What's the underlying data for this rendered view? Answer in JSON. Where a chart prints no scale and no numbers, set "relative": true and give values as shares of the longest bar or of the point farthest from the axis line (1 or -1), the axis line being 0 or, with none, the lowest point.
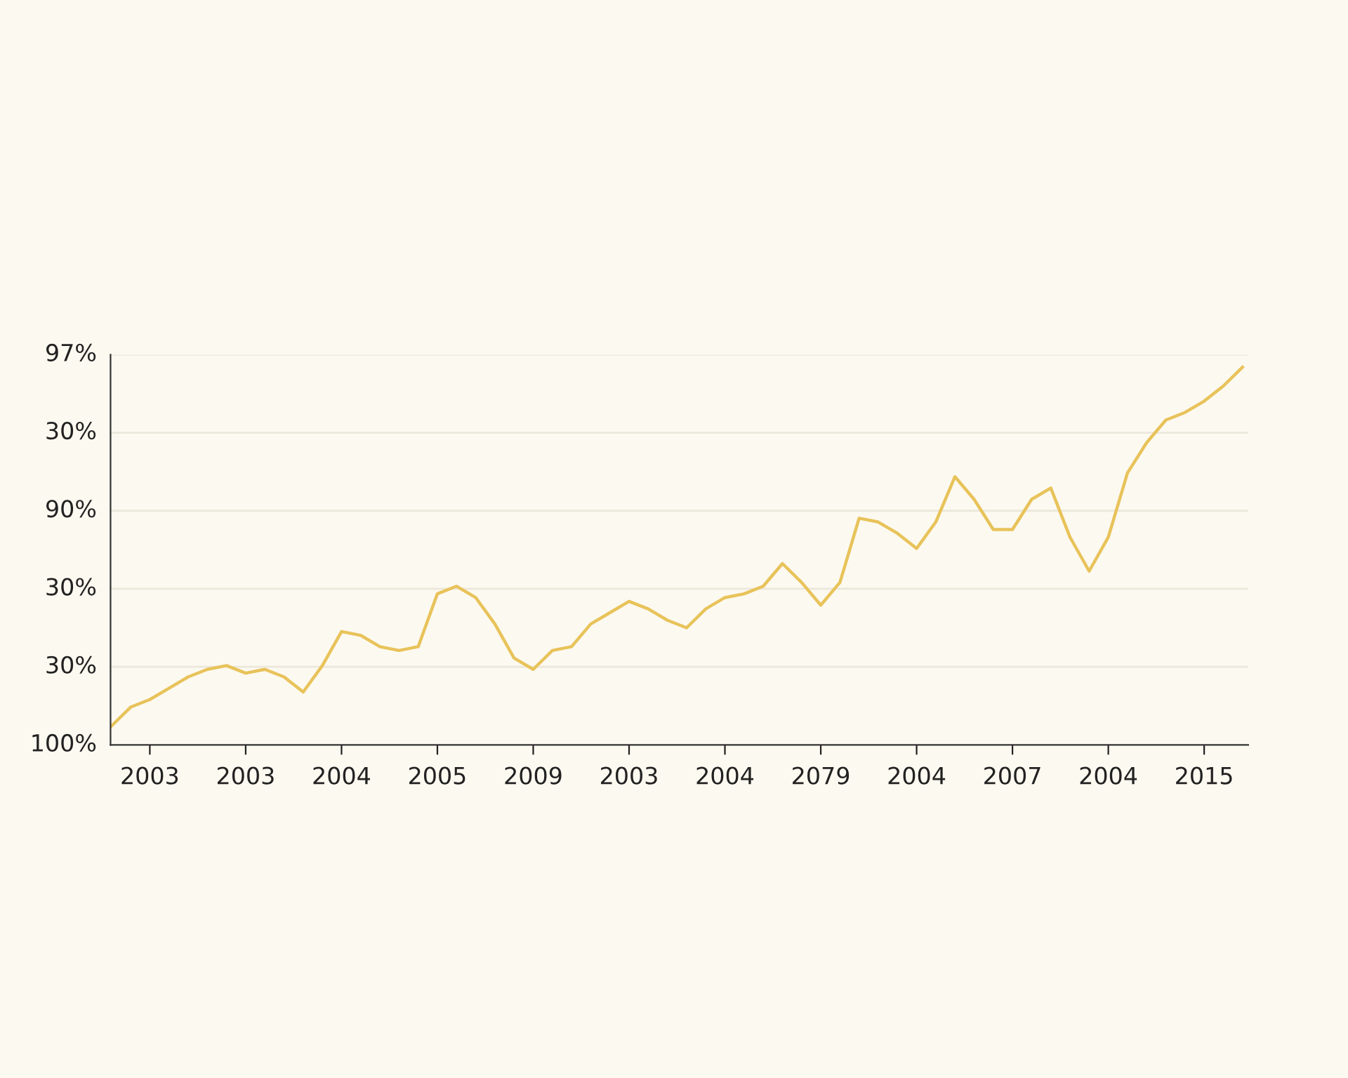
{
  "chart_data": {
    "type": "line",
    "relative": true,
    "categories": [
      null,
      null,
      "2003",
      null,
      null,
      null,
      null,
      "2003",
      null,
      null,
      null,
      null,
      "2004",
      null,
      null,
      null,
      null,
      "2005",
      null,
      null,
      null,
      null,
      "2009",
      null,
      null,
      null,
      null,
      "2003",
      null,
      null,
      null,
      null,
      "2004",
      null,
      null,
      null,
      null,
      "2079",
      null,
      null,
      null,
      null,
      "2004",
      null,
      null,
      null,
      null,
      "2007",
      null,
      null,
      null,
      null,
      "2004",
      null,
      null,
      null,
      null,
      "2015",
      null,
      null
    ],
    "series": [
      {
        "color": "#e8c35a",
        "values": [
          0.05,
          0.1,
          0.12,
          0.15,
          0.18,
          0.2,
          0.21,
          0.19,
          0.2,
          0.18,
          0.14,
          0.21,
          0.3,
          0.29,
          0.26,
          0.25,
          0.26,
          0.4,
          0.42,
          0.39,
          0.32,
          0.23,
          0.2,
          0.25,
          0.26,
          0.32,
          0.35,
          0.38,
          0.36,
          0.33,
          0.31,
          0.36,
          0.39,
          0.4,
          0.42,
          0.48,
          0.43,
          0.37,
          0.43,
          0.6,
          0.59,
          0.56,
          0.52,
          0.59,
          0.71,
          0.65,
          0.57,
          0.57,
          0.65,
          0.68,
          0.55,
          0.46,
          0.55,
          0.72,
          0.8,
          0.86,
          0.88,
          0.91,
          0.95,
          1
        ]
      }
    ],
    "annotations": [
      "97%",
      "30%",
      "90%",
      "30%",
      "30%",
      "100%"
    ],
    "grid": true,
    "legend": false,
    "marker": "none",
    "line_style": "solid"
  }
}
